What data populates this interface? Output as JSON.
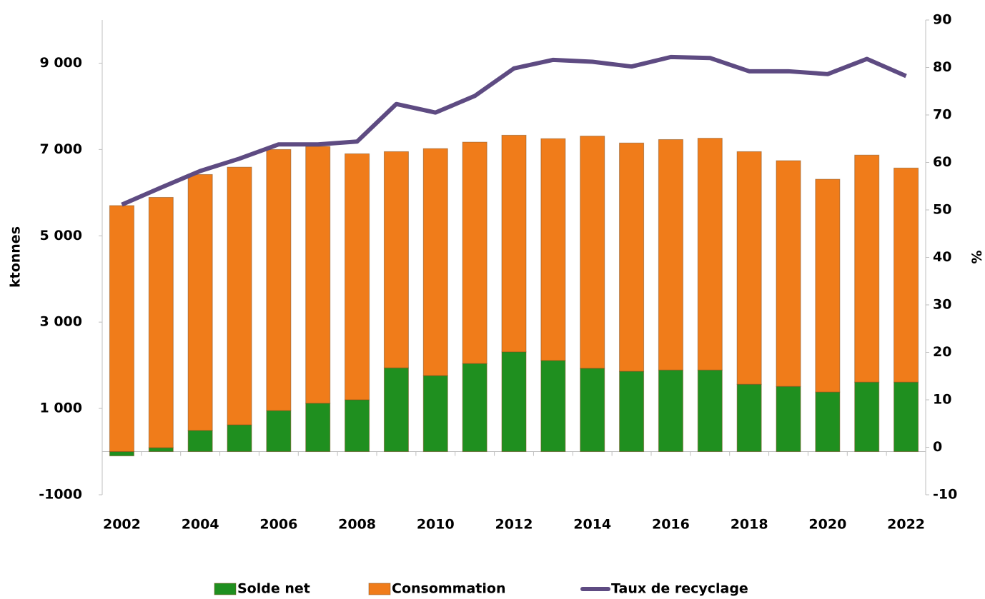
{
  "chart_data": {
    "type": "bar-line",
    "y_label": "ktonnes",
    "y2_label": "%",
    "categories": [
      "2002",
      null,
      "2004",
      null,
      "2006",
      null,
      "2008",
      null,
      "2010",
      null,
      "2012",
      null,
      "2014",
      null,
      "2016",
      null,
      "2018",
      null,
      "2020",
      null,
      "2022"
    ],
    "series": [
      {
        "name": "Solde net",
        "type": "bar",
        "color": "#1f8f1f",
        "values": [
          -100,
          90,
          490,
          620,
          950,
          1120,
          1200,
          1940,
          1760,
          2040,
          2310,
          2110,
          1930,
          1860,
          1890,
          1890,
          1560,
          1510,
          1380,
          1610,
          1610
        ]
      },
      {
        "name": "Consommation",
        "type": "bar",
        "color": "#f07c1a",
        "values": [
          5700,
          5800,
          5930,
          5970,
          6050,
          5950,
          5700,
          5010,
          5260,
          5130,
          5020,
          5140,
          5380,
          5290,
          5340,
          5370,
          5390,
          5230,
          4930,
          5260,
          4960
        ]
      },
      {
        "name": "Taux de recyclage",
        "type": "line",
        "axis": "y2",
        "color": "#5e4b82",
        "values": [
          51.1,
          54.7,
          58.2,
          60.8,
          63.8,
          63.8,
          64.4,
          72.3,
          70.5,
          74,
          79.8,
          81.6,
          81.2,
          80.2,
          82.2,
          82,
          79.2,
          79.2,
          78.6,
          81.8,
          78.2
        ]
      }
    ],
    "stacked": true,
    "ylim": [
      -1000,
      10000
    ],
    "yticks": [
      -1000,
      {
        "value": 1000,
        "label": "1 000"
      },
      {
        "value": 3000,
        "label": "3 000"
      },
      {
        "value": 5000,
        "label": "5 000"
      },
      {
        "value": 7000,
        "label": "7 000"
      },
      {
        "value": 9000,
        "label": "9 000"
      }
    ],
    "y2lim": [
      -10,
      90
    ],
    "y2ticks": [
      -10,
      0,
      10,
      20,
      30,
      40,
      50,
      60,
      70,
      80,
      90
    ],
    "legend": "bottom",
    "grid": false
  }
}
